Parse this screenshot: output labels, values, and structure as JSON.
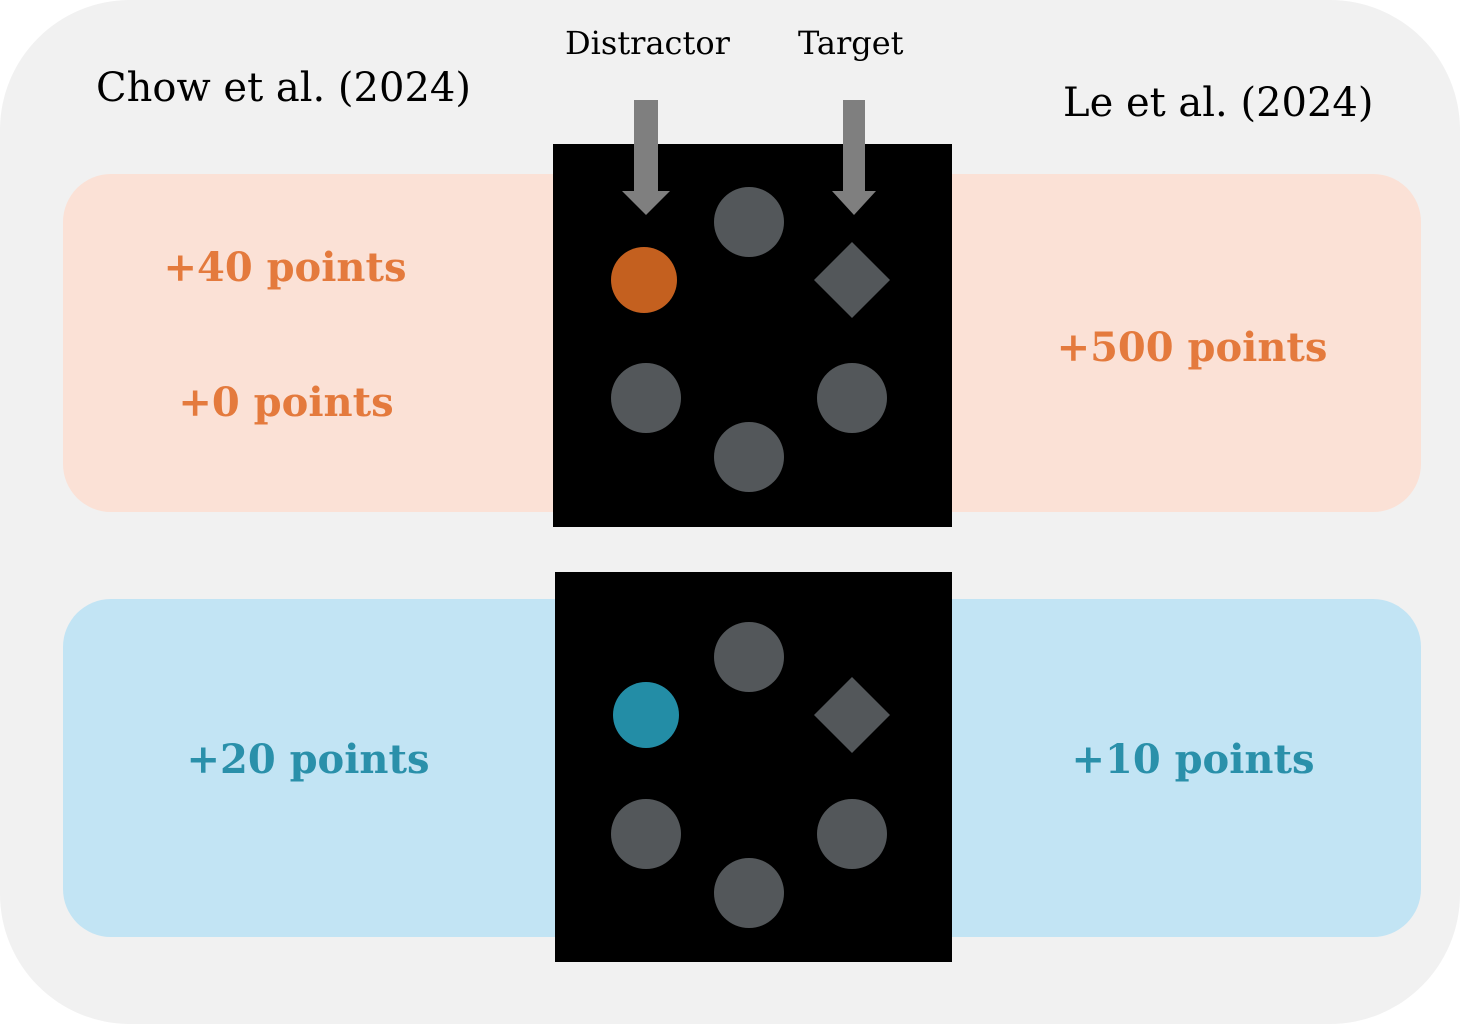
{
  "studies": {
    "left_title": "Chow et al. (2024)",
    "right_title": "Le et al. (2024)"
  },
  "arrows": {
    "distractor_label": "Distractor",
    "target_label": "Target"
  },
  "high_reward_condition": {
    "color": "#c4601f",
    "band_color": "#fbe1d6",
    "text_color": "#e47a3d",
    "chow_points": [
      "+40 points",
      "+0 points"
    ],
    "le_points": "+500 points"
  },
  "low_reward_condition": {
    "color": "#238da6",
    "band_color": "#c2e4f4",
    "text_color": "#2a90aa",
    "chow_points": "+20 points",
    "le_points": "+10 points"
  },
  "search_display": {
    "background": "#000000",
    "nontarget_color": "#53575a",
    "target_shape": "diamond",
    "distractor_shape": "circle",
    "nontarget_shape": "circle",
    "item_count": 6
  }
}
